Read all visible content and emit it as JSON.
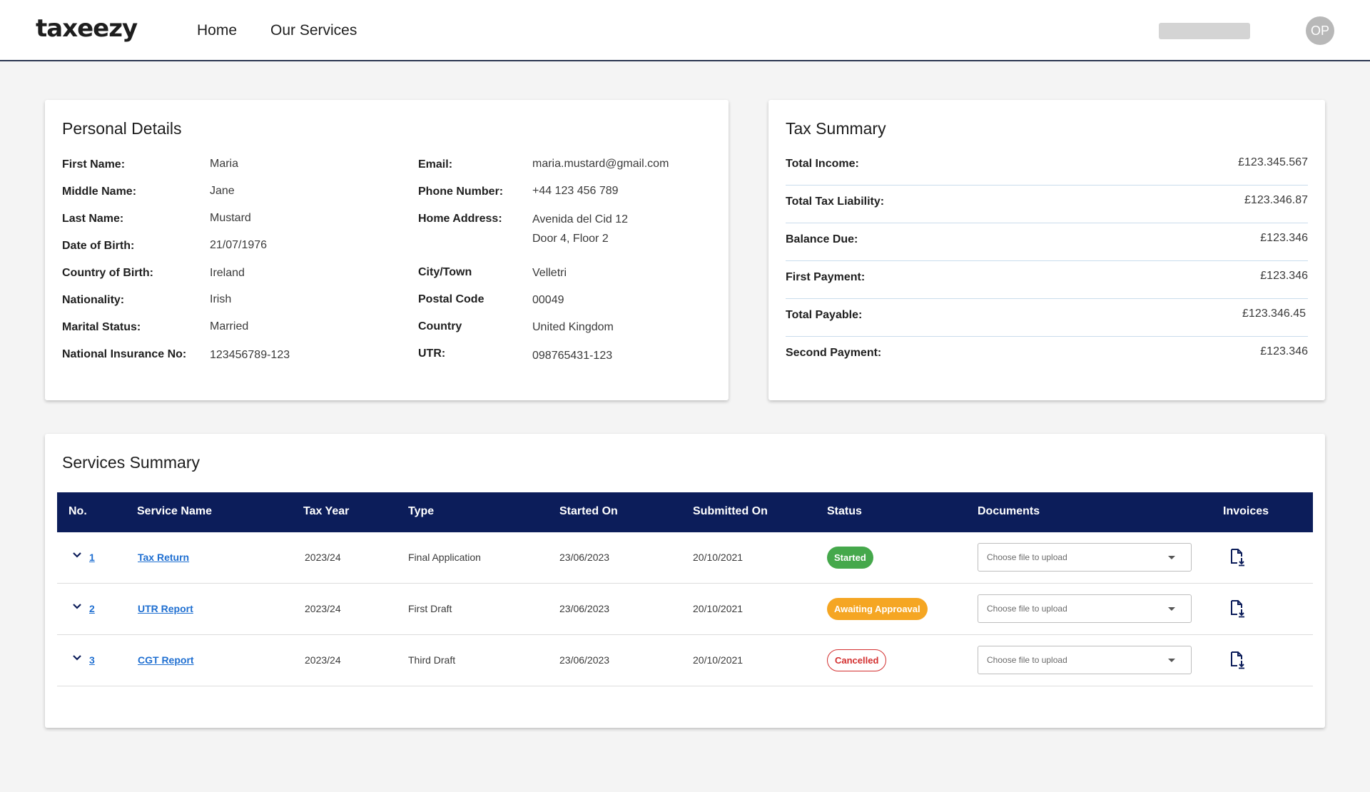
{
  "header": {
    "logo": "taxeezy",
    "nav": [
      "Home",
      "Our Services"
    ],
    "avatar_initials": "OP"
  },
  "personal_details": {
    "title": "Personal Details",
    "left": [
      {
        "label": "First Name:",
        "value": "Maria"
      },
      {
        "label": "Middle Name:",
        "value": "Jane"
      },
      {
        "label": "Last Name:",
        "value": "Mustard"
      },
      {
        "label": "Date of Birth:",
        "value": "21/07/1976"
      },
      {
        "label": "Country of Birth:",
        "value": "Ireland"
      },
      {
        "label": "Nationality:",
        "value": "Irish"
      },
      {
        "label": "Marital Status:",
        "value": "Married"
      },
      {
        "label": "National Insurance No:",
        "value": "123456789-123"
      }
    ],
    "right": [
      {
        "label": "Email:",
        "value": "maria.mustard@gmail.com"
      },
      {
        "label": "Phone Number:",
        "value": "+44  123 456 789"
      },
      {
        "label": "Home Address:",
        "value": "Avenida del Cid 12",
        "value2": "Door 4, Floor 2"
      },
      {
        "label": "City/Town",
        "value": "Velletri"
      },
      {
        "label": "Postal Code",
        "value": "00049"
      },
      {
        "label": "Country",
        "value": "United Kingdom"
      },
      {
        "label": "UTR:",
        "value": "098765431-123"
      }
    ]
  },
  "tax_summary": {
    "title": "Tax Summary",
    "rows": [
      {
        "label": "Total Income:",
        "value": "£123.345.567"
      },
      {
        "label": "Total Tax Liability:",
        "value": "£123.346.87"
      },
      {
        "label": "Balance Due:",
        "value": "£123.346"
      },
      {
        "label": "First Payment:",
        "value": "£123.346"
      },
      {
        "label": "Total Payable:",
        "value": "£123.346.45"
      },
      {
        "label": "Second Payment:",
        "value": "£123.346"
      }
    ]
  },
  "services_summary": {
    "title": "Services Summary",
    "columns": [
      "No.",
      "Service Name",
      "Tax Year",
      "Type",
      "Started On",
      "Submitted On",
      "Status",
      "Documents",
      "Invoices"
    ],
    "rows": [
      {
        "no": "1",
        "service": "Tax Return",
        "tax_year": "2023/24",
        "type": "Final Application",
        "started": "23/06/2023",
        "submitted": "20/10/2021",
        "status": "Started",
        "doc_placeholder": "Choose file to upload"
      },
      {
        "no": "2",
        "service": "UTR Report",
        "tax_year": "2023/24",
        "type": "First Draft",
        "started": "23/06/2023",
        "submitted": "20/10/2021",
        "status": "Awaiting Approaval",
        "doc_placeholder": "Choose file to upload"
      },
      {
        "no": "3",
        "service": "CGT Report",
        "tax_year": "2023/24",
        "type": "Third Draft",
        "started": "23/06/2023",
        "submitted": "20/10/2021",
        "status": "Cancelled",
        "doc_placeholder": "Choose file to upload"
      }
    ]
  },
  "colors": {
    "table_header": "#0c1d5a",
    "status_started": "#45a84b",
    "status_awaiting": "#f5a623",
    "status_cancelled": "#d32f2f",
    "link": "#1f6fd1"
  },
  "icons": {
    "row_expand": "chevron-down-icon",
    "invoice": "file-download-icon",
    "dropdown": "caret-down-icon"
  }
}
